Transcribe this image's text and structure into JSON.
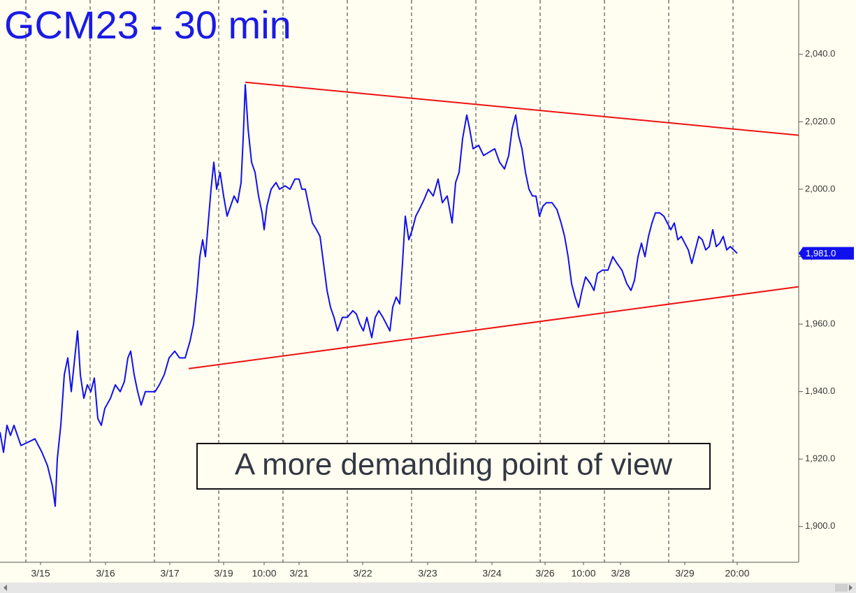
{
  "chart_data": {
    "type": "line",
    "title": "GCM23 - 30 min",
    "annotation": "A more demanding point of view",
    "color": "#1010ee",
    "x": [
      -18.5,
      -16,
      -13.5,
      -11,
      -8.5,
      -3.5,
      1.5,
      6.5,
      11.5,
      15.5,
      19,
      21,
      22.5,
      25,
      27.5,
      30,
      32.5,
      35,
      37,
      39,
      41.5,
      44,
      46.5,
      49,
      51.5,
      54,
      56.5,
      60.5,
      64,
      67.5,
      70.5,
      73,
      75,
      77.5,
      80,
      82.5,
      85.5,
      89,
      92.5,
      95.5,
      99,
      102.5,
      106.5,
      110,
      114,
      117.5,
      120,
      122.5,
      124.5,
      126.5,
      128.5,
      130.5,
      132.5,
      134.5,
      136.5,
      139,
      141.5,
      144,
      146.5,
      149,
      151.5,
      154,
      155.5,
      157,
      159,
      161.5,
      164,
      166.5,
      169,
      170.5,
      172.5,
      175.5,
      179,
      181.5,
      185.5,
      189,
      192.5,
      195.5,
      197.5,
      200,
      202.5,
      205,
      208,
      210.5,
      213,
      215.5,
      218,
      220.5,
      223,
      226.5,
      230,
      234,
      236.5,
      239,
      241.5,
      244,
      247.5,
      250,
      252.5,
      255.5,
      258,
      260.5,
      262.5,
      265,
      267.5,
      269.5,
      271.5,
      274,
      276.5,
      279,
      281.5,
      285,
      288,
      291.5,
      295,
      298,
      301.5,
      305,
      307.5,
      310,
      312.5,
      315.5,
      317.5,
      320,
      324,
      327.5,
      331.5,
      335.5,
      339,
      342.5,
      345.5,
      348,
      350.5,
      352.5,
      355,
      357.5,
      360,
      362.5,
      365,
      367.5,
      370,
      372.5,
      376.5,
      380,
      383,
      385.5,
      388,
      390.5,
      393,
      395.5,
      398,
      400.5,
      404,
      406.5,
      409,
      412.5,
      416.5,
      420,
      423,
      426.5,
      430,
      433,
      435.5,
      438,
      440.5,
      443,
      445.5,
      448,
      450.5,
      453.5,
      456.5,
      459,
      461.5,
      464,
      466.5,
      469,
      471.5,
      474,
      476.5,
      479,
      481.5,
      484,
      486.5,
      489,
      491.5,
      494,
      496.5,
      499,
      501.5,
      504,
      506.5,
      509
    ],
    "values": [
      1928,
      1922,
      1930,
      1927,
      1930,
      1924,
      1925,
      1926,
      1922,
      1918,
      1912,
      1906,
      1920,
      1930,
      1945,
      1950,
      1940,
      1950,
      1958,
      1945,
      1938,
      1942,
      1940,
      1944,
      1932,
      1930,
      1935,
      1938,
      1942,
      1940,
      1943,
      1950,
      1952,
      1945,
      1940,
      1936,
      1940,
      1940,
      1940,
      1942,
      1945,
      1950,
      1952,
      1950,
      1950,
      1955,
      1960,
      1970,
      1980,
      1985,
      1980,
      1990,
      2000,
      2008,
      2000,
      2005,
      1998,
      1992,
      1995,
      1998,
      1996,
      2002,
      2015,
      2031,
      2018,
      2008,
      2005,
      1998,
      1993,
      1988,
      1995,
      2000,
      2002,
      2000,
      2001,
      2000,
      2003,
      2003,
      2000,
      2000,
      1995,
      1990,
      1988,
      1986,
      1978,
      1970,
      1965,
      1962,
      1958,
      1962,
      1962,
      1964,
      1963,
      1960,
      1958,
      1962,
      1956,
      1962,
      1964,
      1962,
      1960,
      1958,
      1965,
      1968,
      1966,
      1978,
      1992,
      1985,
      1988,
      1992,
      1994,
      1997,
      2000,
      1998,
      2003,
      1996,
      1998,
      1990,
      2002,
      2005,
      2015,
      2022,
      2018,
      2012,
      2013,
      2010,
      2011,
      2012,
      2008,
      2006,
      2010,
      2018,
      2022,
      2016,
      2012,
      2005,
      2000,
      1998,
      1998,
      1992,
      1995,
      1996,
      1996,
      1994,
      1990,
      1986,
      1980,
      1972,
      1968,
      1965,
      1970,
      1974,
      1972,
      1970,
      1975,
      1976,
      1976,
      1980,
      1978,
      1976,
      1972,
      1970,
      1973,
      1980,
      1984,
      1980,
      1986,
      1990,
      1993,
      1993,
      1992,
      1990,
      1988,
      1990,
      1985,
      1986,
      1984,
      1982,
      1978,
      1982,
      1986,
      1985,
      1982,
      1983,
      1988,
      1983,
      1984,
      1986,
      1982,
      1983,
      1982,
      1981
    ],
    "last_value": {
      "value": 1981,
      "label": "1,981.0"
    },
    "trendlines": [
      {
        "color": "#ee1111",
        "x": [
          157,
          553
        ],
        "values": [
          2031.7,
          2016.0
        ]
      },
      {
        "color": "#ee1111",
        "x": [
          116.5,
          553
        ],
        "values": [
          1946.8,
          1971.1
        ]
      }
    ],
    "xlim": [
      -18.5,
      553
    ],
    "ylim": [
      1889.4,
      2056.1
    ],
    "x_grid": [
      0,
      46,
      92,
      138,
      184,
      230,
      276,
      322,
      368,
      414,
      460,
      506
    ],
    "xticks": [
      {
        "value": 10.5,
        "label": "3/15"
      },
      {
        "value": 57,
        "label": "3/16"
      },
      {
        "value": 103,
        "label": "3/17"
      },
      {
        "value": 141.5,
        "label": "3/19"
      },
      {
        "value": 170.5,
        "label": "10:00"
      },
      {
        "value": 195.5,
        "label": "3/21"
      },
      {
        "value": 241,
        "label": "3/22"
      },
      {
        "value": 287.5,
        "label": "3/23"
      },
      {
        "value": 333.5,
        "label": "3/24"
      },
      {
        "value": 371.5,
        "label": "3/26"
      },
      {
        "value": 399,
        "label": "10:00"
      },
      {
        "value": 425.5,
        "label": "3/28"
      },
      {
        "value": 471.5,
        "label": "3/29"
      },
      {
        "value": 509,
        "label": "20:00"
      }
    ],
    "yticks": [
      {
        "value": 1900,
        "label": "1,900.0"
      },
      {
        "value": 1920,
        "label": "1,920.0"
      },
      {
        "value": 1940,
        "label": "1,940.0"
      },
      {
        "value": 1960,
        "label": "1,960.0"
      },
      {
        "value": 1980,
        "label": "1,980.0"
      },
      {
        "value": 2000,
        "label": "2,000.0"
      },
      {
        "value": 2020,
        "label": "2,020.0"
      },
      {
        "value": 2040,
        "label": "2,040.0"
      }
    ]
  }
}
